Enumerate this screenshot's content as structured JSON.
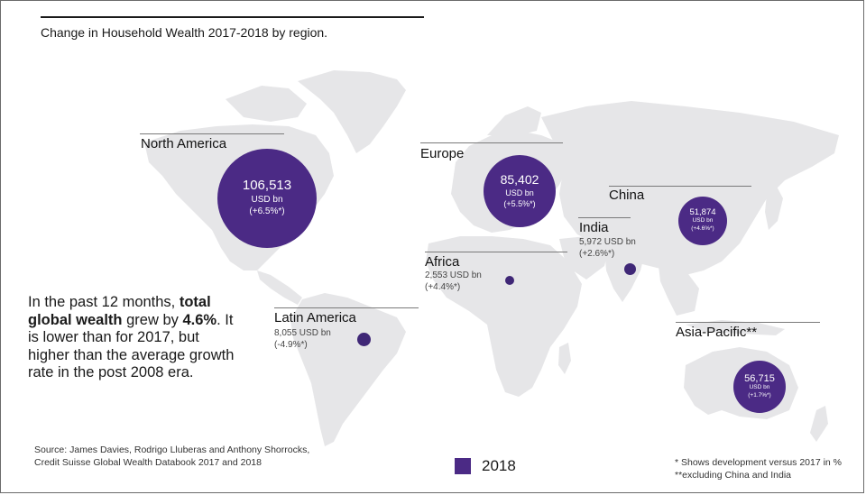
{
  "title": "Change in Household Wealth 2017-2018 by region.",
  "units": "USD bn",
  "regions": [
    {
      "id": "north-america",
      "name": "North America",
      "value": "106,513",
      "units": "USD bn",
      "change": "(+6.5%*)"
    },
    {
      "id": "europe",
      "name": "Europe",
      "value": "85,402",
      "units": "USD bn",
      "change": "(+5.5%*)"
    },
    {
      "id": "china",
      "name": "China",
      "value": "51,874",
      "units": "USD bn",
      "change": "(+4.6%*)"
    },
    {
      "id": "india",
      "name": "India",
      "value": "5,972 USD bn",
      "change": "(+2.6%*)"
    },
    {
      "id": "africa",
      "name": "Africa",
      "value": "2,553 USD bn",
      "change": "(+4.4%*)"
    },
    {
      "id": "latin-america",
      "name": "Latin America",
      "value": "8,055 USD bn",
      "change": "(-4.9%*)"
    },
    {
      "id": "asia-pacific",
      "name": "Asia-Pacific**",
      "value": "56,715",
      "units": "USD bn",
      "change": "(+1.7%*)"
    }
  ],
  "summary": {
    "p1": "In the past 12 months, ",
    "b1": "total global wealth",
    "p2": " grew by ",
    "b2": "4.6%",
    "p3": ". It is lower than for 2017, but higher than the average growth rate in the post 2008 era."
  },
  "source": {
    "line1": "Source: James Davies, Rodrigo Lluberas and Anthony Shorrocks,",
    "line2": "Credit Suisse Global Wealth Databook 2017 and 2018"
  },
  "legend": {
    "label": "2018",
    "color": "#4b2a85"
  },
  "notes": {
    "line1": "* Shows development versus 2017 in %",
    "line2": "**excluding China and India"
  },
  "colors": {
    "bubble": "#4b2a85",
    "land": "#e6e6e8",
    "text": "#1a1a1a"
  }
}
